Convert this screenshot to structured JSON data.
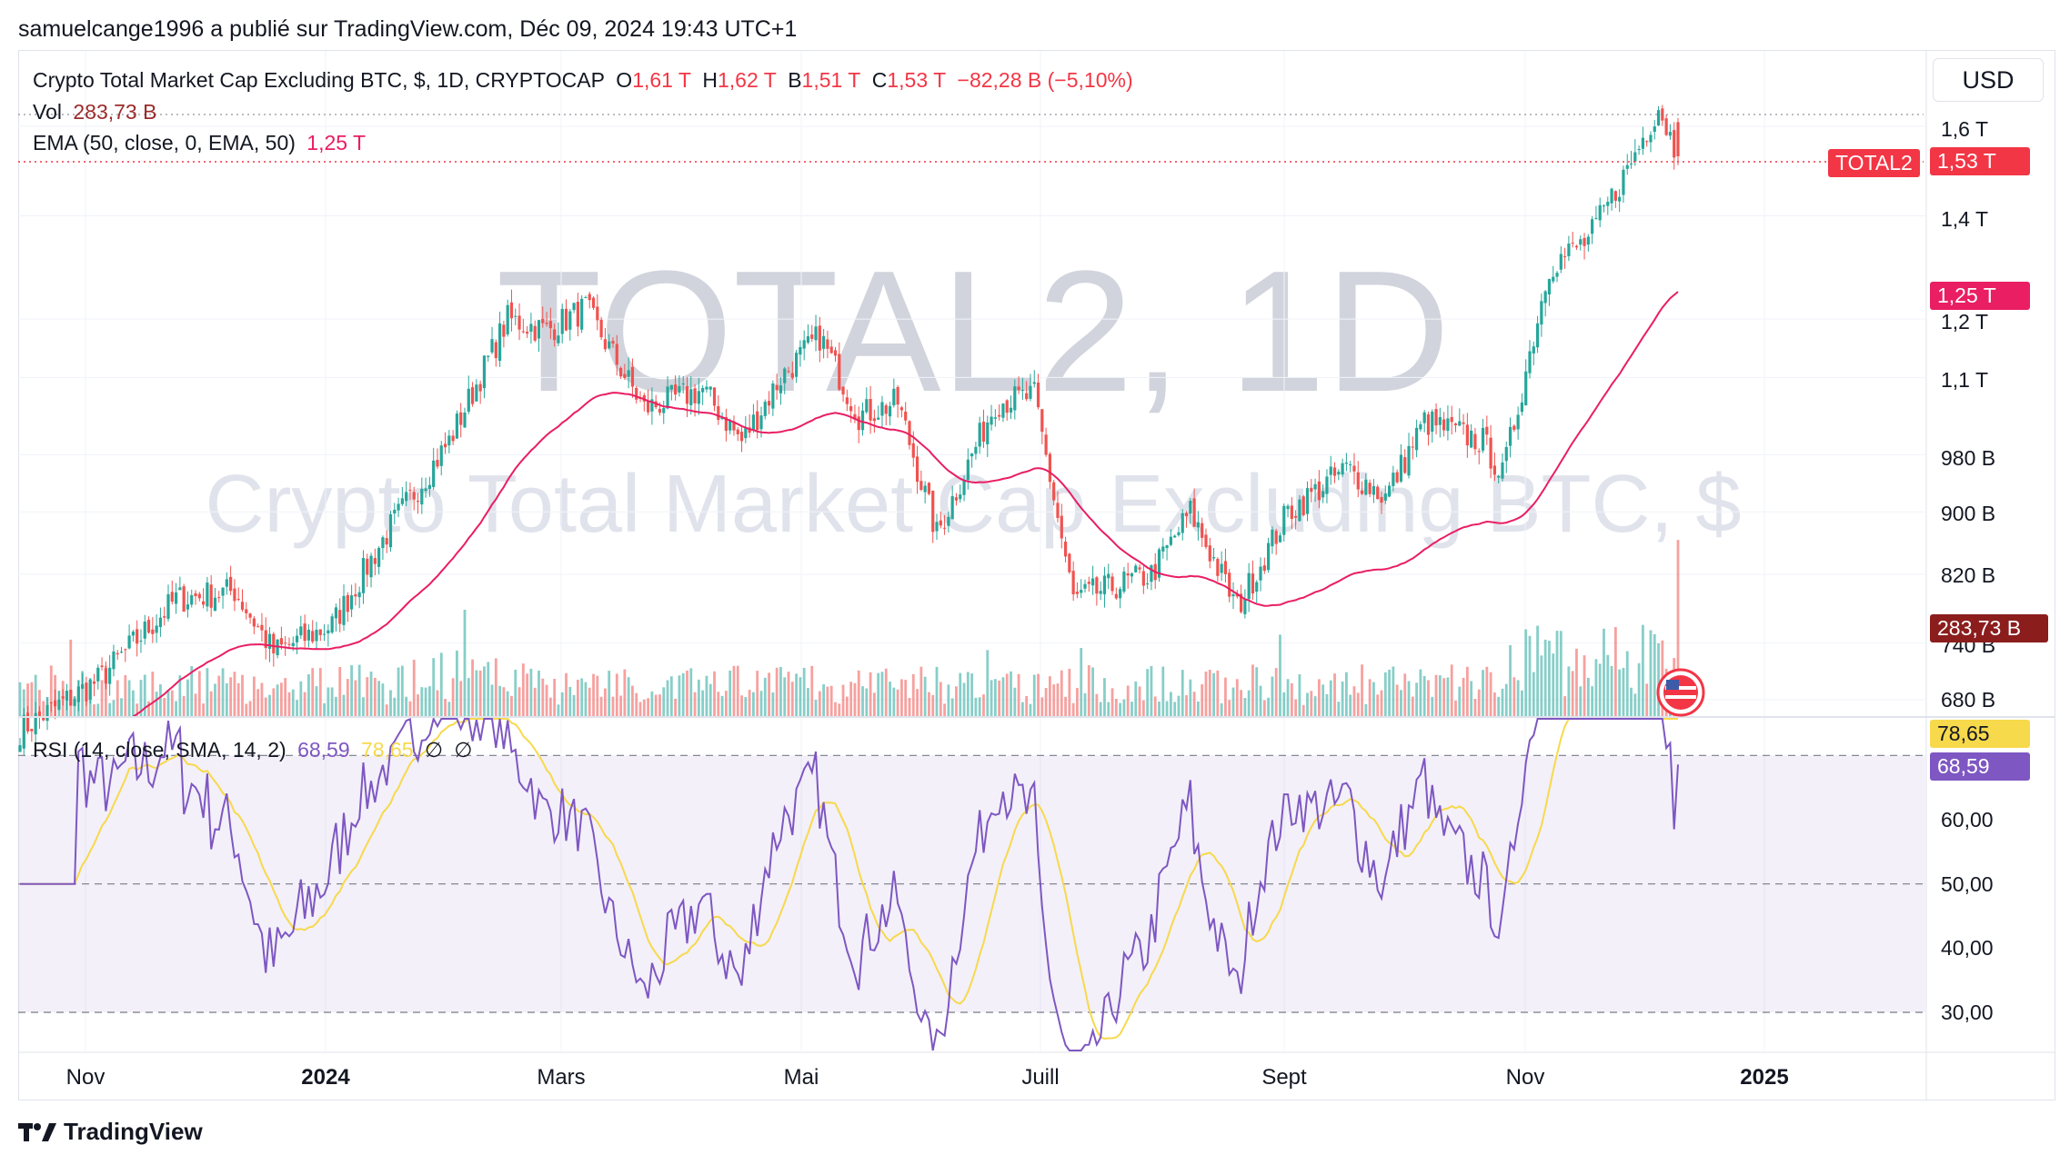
{
  "header": {
    "published_line": "samuelcange1996 a publié sur TradingView.com, Déc 09, 2024 19:43 UTC+1",
    "currency": "USD",
    "footer_brand": "TradingView"
  },
  "legend": {
    "symbol": "Crypto Total Market Cap Excluding BTC, $, 1D, CRYPTOCAP",
    "o_label": "O",
    "o_value": "1,61 T",
    "h_label": "H",
    "h_value": "1,62 T",
    "b_label": "B",
    "b_value": "1,51 T",
    "c_label": "C",
    "c_value": "1,53 T",
    "change": "−82,28 B (−5,10%)",
    "vol_label": "Vol",
    "vol_value": "283,73 B",
    "ema_label": "EMA (50, close, 0, EMA, 50)",
    "ema_value": "1,25 T",
    "rsi_label": "RSI (14, close, SMA, 14, 2)",
    "rsi_value": "68,59",
    "rsi_sma_value": "78,65",
    "rsi_extra1": "∅",
    "rsi_extra2": "∅"
  },
  "watermark": {
    "big": "TOTAL2, 1D",
    "sub": "Crypto Total Market Cap Excluding BTC, $"
  },
  "price_tags": {
    "symbol_tag": "TOTAL2",
    "last_price": "1,53 T",
    "ema_tag": "1,25 T",
    "vol_tag": "283,73 B",
    "rsi_sma_tag": "78,65",
    "rsi_tag": "68,59"
  },
  "colors": {
    "up": "#26a69a",
    "down": "#ef5350",
    "ema": "#e91e63",
    "rsi": "#7e57c2",
    "rsi_sma": "#f7d94c"
  },
  "chart_data": {
    "type": "candlestick",
    "price_axis_ticks": [
      "1,6 T",
      "1,4 T",
      "1,2 T",
      "1,1 T",
      "980 B",
      "900 B",
      "820 B",
      "740 B",
      "680 B"
    ],
    "rsi_axis_ticks": [
      "60,00",
      "50,00",
      "40,00",
      "30,00"
    ],
    "x_ticks": [
      "Nov",
      "2024",
      "Mars",
      "Mai",
      "Juill",
      "Sept",
      "Nov",
      "2025"
    ],
    "rsi_bands": [
      70,
      50,
      30
    ],
    "price_range_B": [
      600,
      1700
    ],
    "rsi_range": [
      24,
      80
    ],
    "price_keypoints_B": [
      [
        0,
        650
      ],
      [
        20,
        700
      ],
      [
        40,
        790
      ],
      [
        55,
        800
      ],
      [
        65,
        730
      ],
      [
        80,
        760
      ],
      [
        95,
        880
      ],
      [
        110,
        1000
      ],
      [
        125,
        1200
      ],
      [
        135,
        1180
      ],
      [
        145,
        1220
      ],
      [
        160,
        1050
      ],
      [
        175,
        1080
      ],
      [
        185,
        1000
      ],
      [
        195,
        1100
      ],
      [
        205,
        1170
      ],
      [
        215,
        1040
      ],
      [
        225,
        1060
      ],
      [
        235,
        870
      ],
      [
        250,
        1060
      ],
      [
        260,
        1070
      ],
      [
        270,
        790
      ],
      [
        290,
        820
      ],
      [
        300,
        900
      ],
      [
        312,
        780
      ],
      [
        325,
        900
      ],
      [
        340,
        960
      ],
      [
        350,
        920
      ],
      [
        360,
        1030
      ],
      [
        375,
        1000
      ],
      [
        380,
        950
      ],
      [
        392,
        1300
      ],
      [
        402,
        1350
      ],
      [
        412,
        1500
      ],
      [
        420,
        1650
      ],
      [
        425,
        1530
      ]
    ],
    "ema_last_B": 1250,
    "volume_last_B": 283.73,
    "rsi_last": 68.59,
    "rsi_sma_last": 78.65,
    "ohlc_last": {
      "open_T": 1.61,
      "high_T": 1.62,
      "low_T": 1.51,
      "close_T": 1.53
    }
  }
}
